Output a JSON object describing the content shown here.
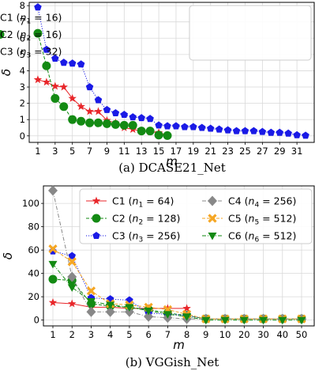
{
  "chart_data": [
    {
      "type": "line",
      "xlabel": "m",
      "ylabel": "δ",
      "caption": "(a) DCASE21_Net",
      "xlim": [
        0,
        33
      ],
      "ylim": [
        -0.4,
        8.2
      ],
      "x_ticks": [
        1,
        3,
        5,
        7,
        9,
        11,
        13,
        15,
        17,
        19,
        21,
        23,
        25,
        27,
        29,
        31
      ],
      "y_ticks": [
        0,
        1,
        2,
        3,
        4,
        5,
        6,
        7,
        8
      ],
      "grid": true,
      "legend_position": "top-right",
      "series": [
        {
          "name": "C1 (n1 = 16)",
          "label_main": "C1 (",
          "label_sub_base": "n",
          "label_sub": "1",
          "label_tail": " = 16)",
          "color": "#e8262a",
          "marker": "star",
          "linestyle": "solid",
          "x": [
            1,
            2,
            3,
            4,
            5,
            6,
            7,
            8,
            9,
            10,
            11,
            12,
            13,
            14,
            15,
            16
          ],
          "values": [
            3.45,
            3.3,
            3.05,
            3.0,
            2.3,
            1.8,
            1.5,
            1.5,
            0.95,
            0.8,
            0.5,
            0.4,
            0.3,
            0.25,
            0.2,
            0.05
          ]
        },
        {
          "name": "C2 (n2 = 16)",
          "label_main": "C2 (",
          "label_sub_base": "n",
          "label_sub": "2",
          "label_tail": " = 16)",
          "color": "#138a13",
          "marker": "circle",
          "linestyle": "dashed",
          "x": [
            1,
            2,
            3,
            4,
            5,
            6,
            7,
            8,
            9,
            10,
            11,
            12,
            13,
            14,
            15,
            16
          ],
          "values": [
            6.3,
            4.3,
            2.3,
            1.8,
            1.0,
            0.9,
            0.8,
            0.8,
            0.75,
            0.7,
            0.65,
            0.65,
            0.3,
            0.3,
            0.05,
            0.02
          ]
        },
        {
          "name": "C3 (n3 = 32)",
          "label_main": "C3 (",
          "label_sub_base": "n",
          "label_sub": "3",
          "label_tail": " = 32)",
          "color": "#1a1ae6",
          "marker": "pentagon",
          "linestyle": "dotted",
          "x": [
            1,
            2,
            3,
            4,
            5,
            6,
            7,
            8,
            9,
            10,
            11,
            12,
            13,
            14,
            15,
            16,
            17,
            18,
            19,
            20,
            21,
            22,
            23,
            24,
            25,
            26,
            27,
            28,
            29,
            30,
            31,
            32
          ],
          "values": [
            7.9,
            5.3,
            4.75,
            4.5,
            4.45,
            4.4,
            3.0,
            2.2,
            1.6,
            1.4,
            1.3,
            1.15,
            1.1,
            1.05,
            0.65,
            0.6,
            0.6,
            0.55,
            0.55,
            0.5,
            0.45,
            0.4,
            0.35,
            0.3,
            0.3,
            0.3,
            0.25,
            0.2,
            0.2,
            0.15,
            0.05,
            0.02
          ]
        }
      ]
    },
    {
      "type": "line",
      "xlabel": "m",
      "ylabel": "δ",
      "caption": "(b) VGGish_Net",
      "categories": [
        "1",
        "2",
        "3",
        "4",
        "5",
        "6",
        "7",
        "8",
        "9",
        "10",
        "20",
        "30",
        "40",
        "50"
      ],
      "ylim": [
        -5,
        115
      ],
      "y_ticks": [
        0,
        20,
        40,
        60,
        80,
        100
      ],
      "grid": true,
      "legend_position": "top-right",
      "series": [
        {
          "name": "C1 (n1 = 64)",
          "label_main": "C1 (",
          "label_sub_base": "n",
          "label_sub": "1",
          "label_tail": " = 64)",
          "color": "#e8262a",
          "marker": "star",
          "linestyle": "solid",
          "values": [
            15,
            14,
            11,
            11,
            10,
            10,
            10,
            10,
            null,
            null,
            null,
            null,
            null,
            null
          ]
        },
        {
          "name": "C2 (n2 = 128)",
          "label_main": "C2 (",
          "label_sub_base": "n",
          "label_sub": "2",
          "label_tail": " = 128)",
          "color": "#138a13",
          "marker": "circle",
          "linestyle": "dashed",
          "values": [
            35,
            34,
            14,
            12,
            11,
            9,
            6,
            4,
            1,
            1,
            1,
            1,
            1,
            1
          ]
        },
        {
          "name": "C3 (n3 = 256)",
          "label_main": "C3 (",
          "label_sub_base": "n",
          "label_sub": "3",
          "label_tail": " = 256)",
          "color": "#1a1ae6",
          "marker": "pentagon",
          "linestyle": "dotted",
          "values": [
            59,
            55,
            19,
            18,
            17,
            6,
            5,
            4,
            1,
            1,
            1,
            1,
            1,
            1
          ]
        },
        {
          "name": "C4 (n4 = 256)",
          "label_main": "C4 (",
          "label_sub_base": "n",
          "label_sub": "4",
          "label_tail": " = 256)",
          "color": "#888888",
          "marker": "diamond",
          "linestyle": "dashdot",
          "values": [
            111,
            37,
            7,
            7,
            7,
            3,
            2,
            1,
            1,
            1,
            1,
            1,
            1,
            1
          ]
        },
        {
          "name": "C5 (n5 = 512)",
          "label_main": "C5 (",
          "label_sub_base": "n",
          "label_sub": "5",
          "label_tail": " = 512)",
          "color": "#f5a623",
          "marker": "x",
          "linestyle": "dashed",
          "values": [
            61,
            50,
            25,
            14,
            13,
            11,
            9,
            5,
            1,
            1,
            1,
            1,
            1,
            1
          ]
        },
        {
          "name": "C6 (n6 = 512)",
          "label_main": "C6 (",
          "label_sub_base": "n",
          "label_sub": "6",
          "label_tail": " = 512)",
          "color": "#138a13",
          "marker": "triangle-down",
          "linestyle": "dashdot",
          "values": [
            48,
            28,
            16,
            13,
            11,
            8,
            5,
            3,
            0,
            0,
            0,
            0,
            0,
            0
          ]
        }
      ]
    }
  ]
}
